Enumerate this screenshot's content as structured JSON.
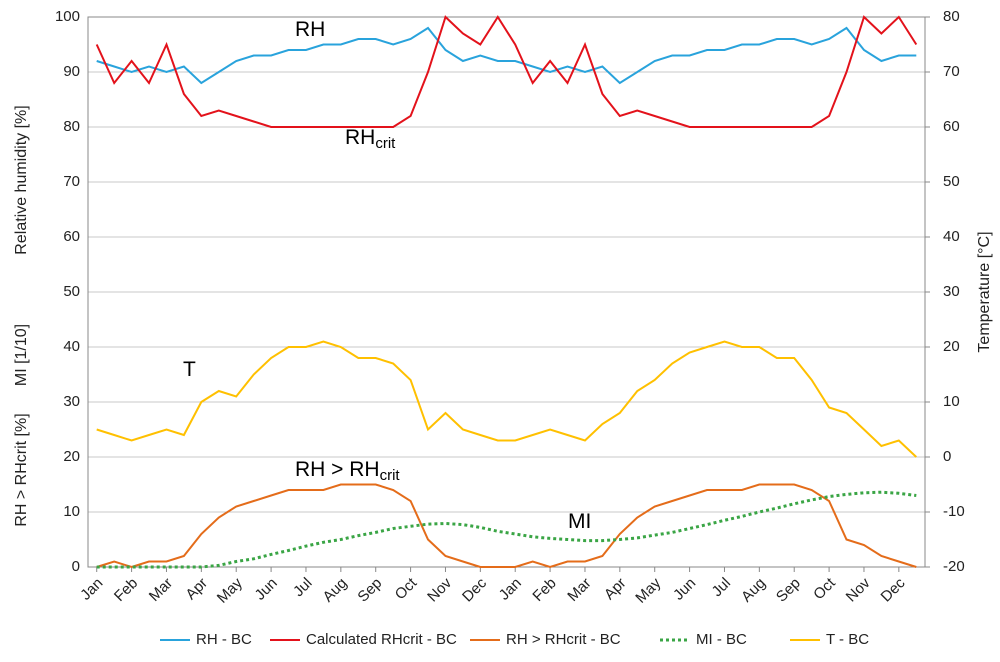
{
  "chart_data": {
    "type": "line",
    "categories": [
      "Jan",
      null,
      "Feb",
      null,
      "Mar",
      null,
      "Apr",
      null,
      "May",
      null,
      "Jun",
      null,
      "Jul",
      null,
      "Aug",
      null,
      "Sep",
      null,
      "Oct",
      null,
      "Nov",
      null,
      "Dec",
      null,
      "Jan",
      null,
      "Feb",
      null,
      "Mar",
      null,
      "Apr",
      null,
      "May",
      null,
      "Jun",
      null,
      "Jul",
      null,
      "Aug",
      null,
      "Sep",
      null,
      "Oct",
      null,
      "Nov",
      null,
      "Dec",
      null
    ],
    "ylabels": [
      "Relative humidity [%]",
      "MI [1/10]",
      "RH > RHcrit [%]"
    ],
    "y2label": "Temperature [°C]",
    "ylim": [
      0,
      100
    ],
    "yticks": [
      0,
      10,
      20,
      30,
      40,
      50,
      60,
      70,
      80,
      90,
      100
    ],
    "y2lim": [
      -20,
      80
    ],
    "y2ticks": [
      -20,
      -10,
      0,
      10,
      20,
      30,
      40,
      50,
      60,
      70,
      80
    ],
    "grid": true,
    "legend": "bottom",
    "series": [
      {
        "name": "RH - BC",
        "color": "#29a3dc",
        "values": [
          92,
          91,
          90,
          91,
          90,
          91,
          88,
          90,
          92,
          93,
          93,
          94,
          94,
          95,
          95,
          96,
          96,
          95,
          96,
          98,
          94,
          92,
          93,
          92,
          92,
          91,
          90,
          91,
          90,
          91,
          88,
          90,
          92,
          93,
          93,
          94,
          94,
          95,
          95,
          96,
          96,
          95,
          96,
          98,
          94,
          92,
          93,
          93
        ]
      },
      {
        "name": "Calculated RHcrit - BC",
        "color": "#e3121b",
        "values": [
          95,
          88,
          92,
          88,
          95,
          86,
          82,
          83,
          82,
          81,
          80,
          80,
          80,
          80,
          80,
          80,
          80,
          80,
          82,
          90,
          100,
          97,
          95,
          100,
          95,
          88,
          92,
          88,
          95,
          86,
          82,
          83,
          82,
          81,
          80,
          80,
          80,
          80,
          80,
          80,
          80,
          80,
          82,
          90,
          100,
          97,
          100,
          95
        ]
      },
      {
        "name": "RH > RHcrit - BC",
        "color": "#e46c1a",
        "values": [
          0,
          1,
          0,
          1,
          1,
          2,
          6,
          9,
          11,
          12,
          13,
          14,
          14,
          14,
          15,
          15,
          15,
          14,
          12,
          5,
          2,
          1,
          0,
          0,
          0,
          1,
          0,
          1,
          1,
          2,
          6,
          9,
          11,
          12,
          13,
          14,
          14,
          14,
          15,
          15,
          15,
          14,
          12,
          5,
          4,
          2,
          1,
          0
        ]
      },
      {
        "name": "MI - BC",
        "color": "#3aa545",
        "dashed": true,
        "values": [
          0,
          0,
          0,
          0,
          0,
          0,
          0,
          0.3,
          1,
          1.5,
          2.3,
          3,
          3.8,
          4.5,
          5,
          5.7,
          6.3,
          7,
          7.4,
          7.8,
          7.9,
          7.7,
          7.2,
          6.5,
          6,
          5.5,
          5.2,
          5,
          4.8,
          4.8,
          5,
          5.3,
          5.8,
          6.3,
          7,
          7.7,
          8.5,
          9.2,
          10,
          10.7,
          11.5,
          12.2,
          12.8,
          13.2,
          13.5,
          13.6,
          13.4,
          13
        ]
      },
      {
        "name": "T - BC",
        "color": "#ffc000",
        "axis": "y2",
        "values": [
          5,
          4,
          3,
          4,
          5,
          4,
          10,
          12,
          11,
          15,
          18,
          20,
          20,
          21,
          20,
          18,
          18,
          17,
          14,
          5,
          8,
          5,
          4,
          3,
          3,
          4,
          5,
          4,
          3,
          6,
          8,
          12,
          14,
          17,
          19,
          20,
          21,
          20,
          20,
          18,
          18,
          14,
          9,
          8,
          5,
          2,
          3,
          0
        ]
      }
    ],
    "annotations": [
      {
        "text": "RH"
      },
      {
        "text": "RH",
        "subscript": "crit"
      },
      {
        "text": "T"
      },
      {
        "text": "RH > RH",
        "subscript": "crit"
      },
      {
        "text": "MI"
      }
    ]
  }
}
